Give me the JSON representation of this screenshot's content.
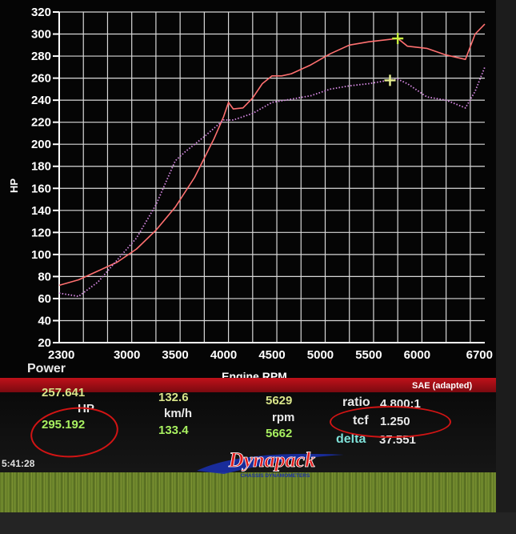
{
  "chart_data": {
    "type": "line",
    "ylabel": "HP",
    "xlabel": "Engine RPM",
    "x_ticks": [
      "2300",
      "3000",
      "3500",
      "4000",
      "4500",
      "5000",
      "5500",
      "6000",
      "6700"
    ],
    "y_ticks": [
      "20",
      "40",
      "60",
      "80",
      "100",
      "120",
      "140",
      "160",
      "180",
      "200",
      "220",
      "240",
      "260",
      "280",
      "300",
      "320"
    ],
    "xlim": [
      2300,
      6700
    ],
    "ylim": [
      20,
      320
    ],
    "grid": true,
    "series": [
      {
        "color": "#ff7070",
        "style": "solid",
        "x": [
          2300,
          2500,
          2700,
          2900,
          3100,
          3300,
          3500,
          3700,
          3900,
          4000,
          4050,
          4100,
          4200,
          4300,
          4400,
          4500,
          4600,
          4700,
          4900,
          5100,
          5300,
          5500,
          5700,
          5800,
          5900,
          6100,
          6300,
          6500,
          6600,
          6700
        ],
        "values": [
          72,
          77,
          85,
          93,
          105,
          122,
          143,
          170,
          205,
          225,
          238,
          232,
          233,
          242,
          255,
          262,
          262,
          264,
          272,
          282,
          290,
          293,
          295,
          296,
          289,
          287,
          281,
          277,
          300,
          309
        ]
      },
      {
        "color": "#d98ae6",
        "style": "dotted",
        "x": [
          2300,
          2500,
          2700,
          2900,
          3100,
          3300,
          3500,
          3600,
          3800,
          4000,
          4100,
          4300,
          4500,
          4700,
          4900,
          5100,
          5300,
          5500,
          5700,
          5800,
          5900,
          6100,
          6300,
          6500,
          6600,
          6700
        ],
        "values": [
          65,
          62,
          75,
          95,
          115,
          145,
          185,
          193,
          207,
          222,
          222,
          228,
          238,
          241,
          244,
          250,
          253,
          255,
          258,
          259,
          255,
          243,
          240,
          233,
          248,
          270
        ]
      }
    ],
    "markers": [
      {
        "x": 5800,
        "y": 296,
        "color": "#c8f040"
      },
      {
        "x": 5720,
        "y": 258,
        "color": "#e8f090"
      }
    ]
  },
  "readout": {
    "power_label": "Power",
    "sae_label": "SAE (adapted)",
    "hp_value_1": "257.641",
    "hp_label": "HP",
    "hp_value_2": "295.192",
    "speed_value_1": "132.6",
    "speed_label": "km/h",
    "speed_value_2": "133.4",
    "rpm_value_1": "5629",
    "rpm_label": "rpm",
    "rpm_value_2": "5662",
    "ratio_label": "ratio",
    "ratio_value": "4.800:1",
    "tcf_label": "tcf",
    "tcf_value": "1.250",
    "delta_label": "delta",
    "delta_value": "37.551",
    "time_text": "5:41:28"
  },
  "logo": {
    "brand": "Dynapack",
    "subtitle": "CHASSIS DYNAMOMETERS"
  },
  "colors": {
    "background": "#050505",
    "grid": "#d8d8d8",
    "red_band": "#c0111a",
    "annotation_circle": "#d21414"
  }
}
